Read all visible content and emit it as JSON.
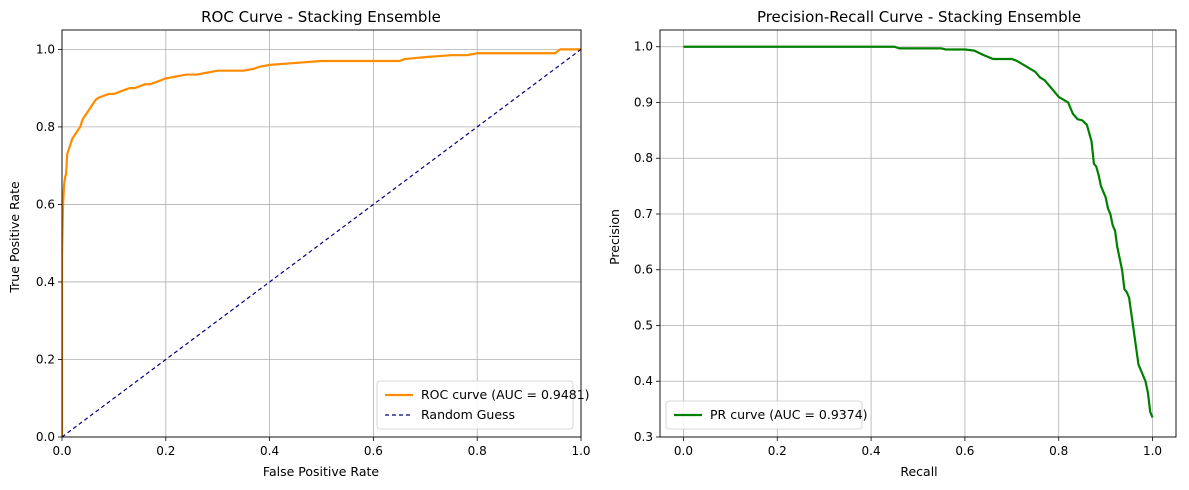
{
  "chart_data": [
    {
      "type": "line",
      "title": "ROC Curve - Stacking Ensemble",
      "xlabel": "False Positive Rate",
      "ylabel": "True Positive Rate",
      "xlim": [
        0.0,
        1.0
      ],
      "ylim": [
        0.0,
        1.05
      ],
      "xticks": [
        "0.0",
        "0.2",
        "0.4",
        "0.6",
        "0.8",
        "1.0"
      ],
      "yticks": [
        "0.0",
        "0.2",
        "0.4",
        "0.6",
        "0.8",
        "1.0"
      ],
      "grid": true,
      "legend_position": "lower right",
      "series": [
        {
          "name": "ROC curve (AUC = 0.9481)",
          "color": "#ff8c00",
          "style": "solid",
          "x": [
            0.0,
            0.0,
            0.002,
            0.004,
            0.006,
            0.008,
            0.01,
            0.015,
            0.02,
            0.025,
            0.03,
            0.035,
            0.04,
            0.045,
            0.05,
            0.055,
            0.06,
            0.065,
            0.07,
            0.08,
            0.09,
            0.1,
            0.11,
            0.12,
            0.13,
            0.14,
            0.15,
            0.16,
            0.17,
            0.18,
            0.19,
            0.2,
            0.22,
            0.24,
            0.26,
            0.28,
            0.3,
            0.32,
            0.35,
            0.37,
            0.38,
            0.4,
            0.45,
            0.5,
            0.6,
            0.65,
            0.66,
            0.7,
            0.75,
            0.78,
            0.8,
            0.85,
            0.9,
            0.95,
            0.96,
            1.0
          ],
          "y": [
            0.0,
            0.46,
            0.6,
            0.65,
            0.67,
            0.68,
            0.73,
            0.75,
            0.77,
            0.78,
            0.79,
            0.8,
            0.82,
            0.83,
            0.84,
            0.85,
            0.86,
            0.87,
            0.875,
            0.88,
            0.885,
            0.885,
            0.89,
            0.895,
            0.9,
            0.9,
            0.905,
            0.91,
            0.91,
            0.915,
            0.92,
            0.925,
            0.93,
            0.935,
            0.935,
            0.94,
            0.945,
            0.945,
            0.945,
            0.95,
            0.955,
            0.96,
            0.965,
            0.97,
            0.97,
            0.97,
            0.975,
            0.98,
            0.985,
            0.985,
            0.99,
            0.99,
            0.99,
            0.99,
            1.0,
            1.0
          ]
        },
        {
          "name": "Random Guess",
          "color": "#000080",
          "style": "dashed",
          "x": [
            0.0,
            1.0
          ],
          "y": [
            0.0,
            1.0
          ]
        }
      ]
    },
    {
      "type": "line",
      "title": "Precision-Recall Curve - Stacking Ensemble",
      "xlabel": "Recall",
      "ylabel": "Precision",
      "xlim": [
        -0.05,
        1.05
      ],
      "ylim": [
        0.3,
        1.03
      ],
      "xticks": [
        "0.0",
        "0.2",
        "0.4",
        "0.6",
        "0.8",
        "1.0"
      ],
      "yticks": [
        "0.3",
        "0.4",
        "0.5",
        "0.6",
        "0.7",
        "0.8",
        "0.9",
        "1.0"
      ],
      "grid": true,
      "legend_position": "lower left",
      "series": [
        {
          "name": "PR curve (AUC = 0.9374)",
          "color": "#008000",
          "style": "solid",
          "x": [
            0.0,
            0.1,
            0.2,
            0.3,
            0.4,
            0.45,
            0.46,
            0.5,
            0.55,
            0.56,
            0.6,
            0.62,
            0.64,
            0.66,
            0.7,
            0.71,
            0.73,
            0.74,
            0.75,
            0.76,
            0.77,
            0.78,
            0.79,
            0.8,
            0.81,
            0.82,
            0.83,
            0.84,
            0.85,
            0.86,
            0.87,
            0.875,
            0.88,
            0.885,
            0.89,
            0.895,
            0.9,
            0.905,
            0.91,
            0.915,
            0.92,
            0.925,
            0.93,
            0.935,
            0.94,
            0.945,
            0.95,
            0.955,
            0.96,
            0.965,
            0.97,
            0.975,
            0.98,
            0.985,
            0.99,
            0.995,
            1.0
          ],
          "y": [
            1.0,
            1.0,
            1.0,
            1.0,
            1.0,
            1.0,
            0.997,
            0.997,
            0.997,
            0.995,
            0.995,
            0.993,
            0.985,
            0.978,
            0.978,
            0.975,
            0.965,
            0.96,
            0.955,
            0.945,
            0.94,
            0.93,
            0.92,
            0.91,
            0.905,
            0.9,
            0.88,
            0.87,
            0.868,
            0.86,
            0.83,
            0.79,
            0.785,
            0.77,
            0.75,
            0.74,
            0.73,
            0.71,
            0.7,
            0.68,
            0.67,
            0.64,
            0.62,
            0.6,
            0.565,
            0.56,
            0.55,
            0.52,
            0.49,
            0.46,
            0.43,
            0.42,
            0.41,
            0.4,
            0.38,
            0.345,
            0.335
          ]
        }
      ]
    }
  ]
}
